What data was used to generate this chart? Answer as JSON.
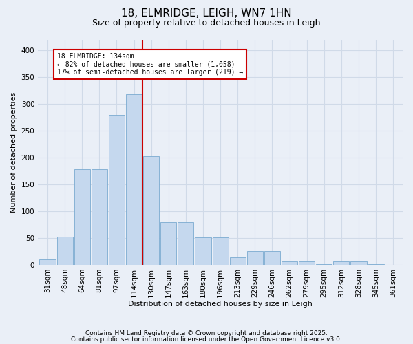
{
  "title1": "18, ELMRIDGE, LEIGH, WN7 1HN",
  "title2": "Size of property relative to detached houses in Leigh",
  "xlabel": "Distribution of detached houses by size in Leigh",
  "ylabel": "Number of detached properties",
  "categories": [
    "31sqm",
    "48sqm",
    "64sqm",
    "81sqm",
    "97sqm",
    "114sqm",
    "130sqm",
    "147sqm",
    "163sqm",
    "180sqm",
    "196sqm",
    "213sqm",
    "229sqm",
    "246sqm",
    "262sqm",
    "279sqm",
    "295sqm",
    "312sqm",
    "328sqm",
    "345sqm",
    "361sqm"
  ],
  "bar_values": [
    10,
    52,
    178,
    178,
    280,
    318,
    203,
    80,
    80,
    51,
    51,
    14,
    25,
    25,
    6,
    7,
    1,
    6,
    7,
    1,
    0
  ],
  "bar_color": "#c5d8ee",
  "bar_edge_color": "#7aaad0",
  "vline_color": "#cc0000",
  "vline_x": 5.5,
  "annotation_text_line1": "18 ELMRIDGE: 134sqm",
  "annotation_text_line2": "← 82% of detached houses are smaller (1,058)",
  "annotation_text_line3": "17% of semi-detached houses are larger (219) →",
  "annotation_box_color": "#cc0000",
  "annotation_box_bg": "#ffffff",
  "ylim": [
    0,
    420
  ],
  "yticks": [
    0,
    50,
    100,
    150,
    200,
    250,
    300,
    350,
    400
  ],
  "grid_color": "#d0dae8",
  "bg_color": "#eaeff7",
  "footer1": "Contains HM Land Registry data © Crown copyright and database right 2025.",
  "footer2": "Contains public sector information licensed under the Open Government Licence v3.0.",
  "title_font_size": 11,
  "subtitle_font_size": 9,
  "axis_label_font_size": 8,
  "tick_font_size": 7.5,
  "footer_font_size": 6.5
}
